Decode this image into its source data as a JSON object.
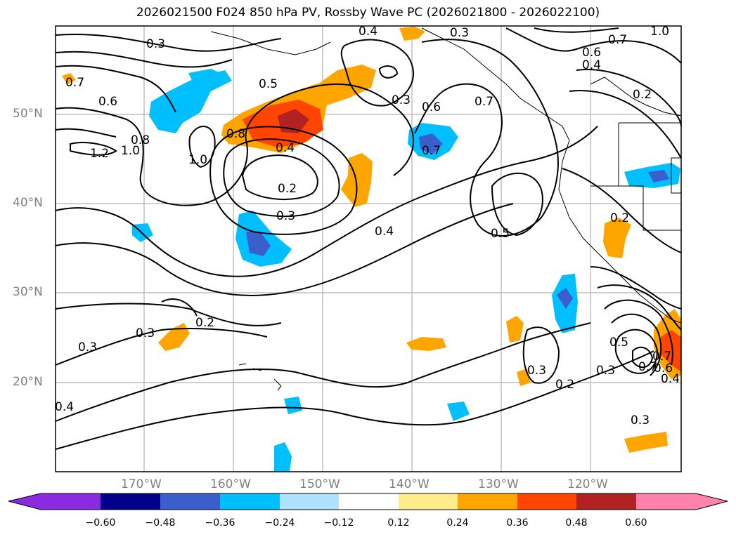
{
  "title": "2026021500 F024 850 hPa PV, Rossby Wave PC (2026021800 - 2026022100)",
  "lat_labels": [
    "50°N",
    "40°N",
    "30°N",
    "20°N"
  ],
  "lon_labels": [
    "170°W",
    "160°W",
    "150°W",
    "140°W",
    "130°W",
    "120°W"
  ],
  "contour_labels": [
    "0.3",
    "0.4",
    "0.3",
    "0.8",
    "1.0",
    "0.5",
    "0.7",
    "0.6",
    "0.6",
    "0.7",
    "0.4",
    "1.2",
    "0.8",
    "1.0",
    "0.3",
    "0.6",
    "0.7",
    "1.0",
    "0.2",
    "0.4",
    "0.2",
    "0.3",
    "0.5",
    "0.4",
    "0.7",
    "0.3",
    "0.2",
    "0.2",
    "0.7",
    "0.3",
    "0.3",
    "0.2",
    "0.3",
    "0.5",
    "0.7",
    "0.6",
    "0.4",
    "0.4",
    "0.3"
  ],
  "colorbar": {
    "ticks": [
      "−0.60",
      "−0.48",
      "−0.36",
      "−0.24",
      "−0.12",
      "0.12",
      "0.24",
      "0.36",
      "0.48",
      "0.60"
    ],
    "colors": [
      "#8a2be2",
      "#00008b",
      "#3a5fcd",
      "#00bfff",
      "#b0e2ff",
      "#ffffff",
      "#ffec8b",
      "#ffa500",
      "#ff4500",
      "#b22222",
      "#ff82ab"
    ]
  },
  "legend_colors": {
    "neg_strong": "#3a5fcd",
    "neg": "#00bfff",
    "neg_weak": "#b0e2ff",
    "pos_weak": "#ffec8b",
    "pos": "#ffa500",
    "pos_strong": "#ff4500",
    "pos_max": "#b22222"
  }
}
